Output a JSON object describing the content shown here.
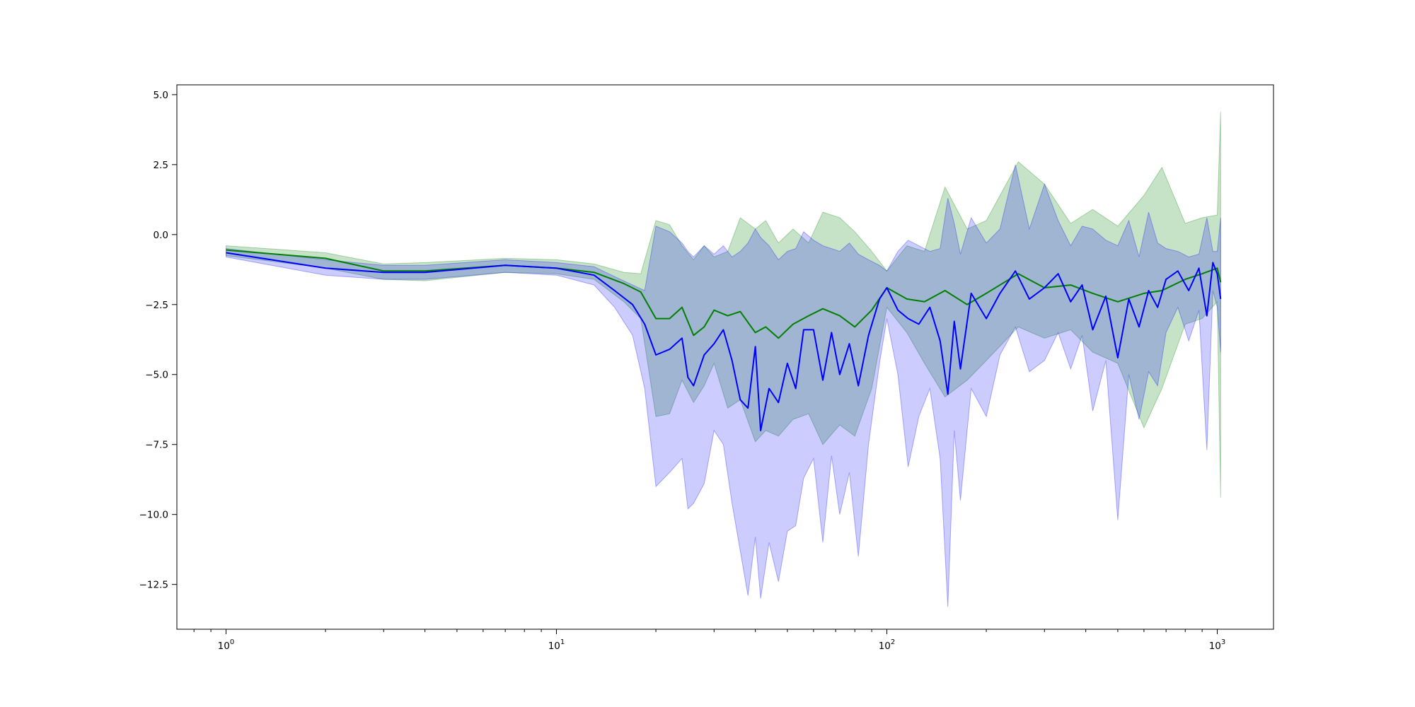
{
  "chart_data": {
    "type": "line",
    "title": "",
    "xlabel": "",
    "ylabel": "",
    "x_scale": "log",
    "xlim": [
      0.71,
      1480
    ],
    "ylim": [
      -14.1,
      5.35
    ],
    "grid": false,
    "legend": "none",
    "x_tick_labels": [
      {
        "base": "10",
        "exp": "0",
        "value": 1
      },
      {
        "base": "10",
        "exp": "1",
        "value": 10
      },
      {
        "base": "10",
        "exp": "2",
        "value": 100
      },
      {
        "base": "10",
        "exp": "3",
        "value": 1000
      }
    ],
    "y_tick_labels": [
      {
        "label": "5.0",
        "value": 5.0
      },
      {
        "label": "2.5",
        "value": 2.5
      },
      {
        "label": "0.0",
        "value": 0.0
      },
      {
        "label": "−2.5",
        "value": -2.5
      },
      {
        "label": "−5.0",
        "value": -5.0
      },
      {
        "label": "−7.5",
        "value": -7.5
      },
      {
        "label": "−10.0",
        "value": -10.0
      },
      {
        "label": "−12.5",
        "value": -12.5
      }
    ],
    "series": [
      {
        "color": "#008000",
        "band_opacity": 0.22,
        "points": [
          {
            "x": 1,
            "y": -0.55,
            "lo": -0.75,
            "hi": -0.4
          },
          {
            "x": 2,
            "y": -0.85,
            "lo": -1.2,
            "hi": -0.65
          },
          {
            "x": 3,
            "y": -1.3,
            "lo": -1.6,
            "hi": -1.05
          },
          {
            "x": 4,
            "y": -1.3,
            "lo": -1.65,
            "hi": -1.0
          },
          {
            "x": 7,
            "y": -1.1,
            "lo": -1.35,
            "hi": -0.85
          },
          {
            "x": 10,
            "y": -1.2,
            "lo": -1.4,
            "hi": -0.9
          },
          {
            "x": 13,
            "y": -1.35,
            "lo": -1.6,
            "hi": -1.05
          },
          {
            "x": 16,
            "y": -1.75,
            "lo": -2.4,
            "hi": -1.35
          },
          {
            "x": 18,
            "y": -2.05,
            "lo": -3.0,
            "hi": -1.4
          },
          {
            "x": 20,
            "y": -3.0,
            "lo": -6.5,
            "hi": 0.5
          },
          {
            "x": 22,
            "y": -3.0,
            "lo": -6.4,
            "hi": 0.35
          },
          {
            "x": 24,
            "y": -2.6,
            "lo": -5.2,
            "hi": -0.4
          },
          {
            "x": 26,
            "y": -3.6,
            "lo": -6.0,
            "hi": -0.9
          },
          {
            "x": 28,
            "y": -3.3,
            "lo": -5.4,
            "hi": -0.4
          },
          {
            "x": 30,
            "y": -2.7,
            "lo": -4.6,
            "hi": -0.8
          },
          {
            "x": 33,
            "y": -2.9,
            "lo": -6.2,
            "hi": -0.6
          },
          {
            "x": 36,
            "y": -2.75,
            "lo": -5.9,
            "hi": 0.6
          },
          {
            "x": 40,
            "y": -3.5,
            "lo": -7.4,
            "hi": 0.2
          },
          {
            "x": 43,
            "y": -3.3,
            "lo": -7.0,
            "hi": 0.5
          },
          {
            "x": 47,
            "y": -3.7,
            "lo": -7.2,
            "hi": -0.3
          },
          {
            "x": 52,
            "y": -3.2,
            "lo": -6.6,
            "hi": 0.2
          },
          {
            "x": 58,
            "y": -2.9,
            "lo": -6.4,
            "hi": -0.3
          },
          {
            "x": 64,
            "y": -2.65,
            "lo": -7.5,
            "hi": 0.8
          },
          {
            "x": 72,
            "y": -2.9,
            "lo": -6.8,
            "hi": 0.6
          },
          {
            "x": 80,
            "y": -3.3,
            "lo": -7.2,
            "hi": 0.1
          },
          {
            "x": 90,
            "y": -2.7,
            "lo": -5.5,
            "hi": -0.6
          },
          {
            "x": 100,
            "y": -1.9,
            "lo": -2.6,
            "hi": -1.3
          },
          {
            "x": 115,
            "y": -2.3,
            "lo": -3.5,
            "hi": -0.4
          },
          {
            "x": 130,
            "y": -2.4,
            "lo": -4.6,
            "hi": -0.6
          },
          {
            "x": 150,
            "y": -2.0,
            "lo": -5.8,
            "hi": 1.7
          },
          {
            "x": 175,
            "y": -2.5,
            "lo": -5.2,
            "hi": 0.2
          },
          {
            "x": 200,
            "y": -2.1,
            "lo": -4.5,
            "hi": 0.5
          },
          {
            "x": 250,
            "y": -1.4,
            "lo": -3.3,
            "hi": 2.6
          },
          {
            "x": 300,
            "y": -1.9,
            "lo": -3.7,
            "hi": 1.8
          },
          {
            "x": 360,
            "y": -1.8,
            "lo": -3.4,
            "hi": 0.4
          },
          {
            "x": 420,
            "y": -2.1,
            "lo": -4.2,
            "hi": 0.9
          },
          {
            "x": 500,
            "y": -2.4,
            "lo": -4.6,
            "hi": 0.3
          },
          {
            "x": 600,
            "y": -2.1,
            "lo": -6.9,
            "hi": 1.4
          },
          {
            "x": 680,
            "y": -2.0,
            "lo": -5.5,
            "hi": 2.4
          },
          {
            "x": 800,
            "y": -1.6,
            "lo": -3.2,
            "hi": 0.4
          },
          {
            "x": 900,
            "y": -1.4,
            "lo": -3.0,
            "hi": 0.6
          },
          {
            "x": 1000,
            "y": -1.2,
            "lo": -2.4,
            "hi": 0.7
          },
          {
            "x": 1024,
            "y": -1.7,
            "lo": -9.4,
            "hi": 4.4
          }
        ]
      },
      {
        "color": "#0000ff",
        "band_opacity": 0.2,
        "points": [
          {
            "x": 1,
            "y": -0.65,
            "lo": -0.8,
            "hi": -0.5
          },
          {
            "x": 2,
            "y": -1.2,
            "lo": -1.45,
            "hi": -0.9
          },
          {
            "x": 3,
            "y": -1.35,
            "lo": -1.6,
            "hi": -1.1
          },
          {
            "x": 4,
            "y": -1.35,
            "lo": -1.6,
            "hi": -1.1
          },
          {
            "x": 7,
            "y": -1.1,
            "lo": -1.35,
            "hi": -0.9
          },
          {
            "x": 10,
            "y": -1.2,
            "lo": -1.45,
            "hi": -1.0
          },
          {
            "x": 13,
            "y": -1.45,
            "lo": -1.8,
            "hi": -1.15
          },
          {
            "x": 15,
            "y": -2.0,
            "lo": -2.6,
            "hi": -1.5
          },
          {
            "x": 17,
            "y": -2.5,
            "lo": -3.6,
            "hi": -1.8
          },
          {
            "x": 18.5,
            "y": -3.2,
            "lo": -5.5,
            "hi": -2.0
          },
          {
            "x": 20,
            "y": -4.3,
            "lo": -9.0,
            "hi": 0.3
          },
          {
            "x": 22,
            "y": -4.1,
            "lo": -8.5,
            "hi": 0.1
          },
          {
            "x": 24,
            "y": -3.7,
            "lo": -8.0,
            "hi": -0.3
          },
          {
            "x": 25,
            "y": -5.1,
            "lo": -9.8,
            "hi": -0.6
          },
          {
            "x": 26,
            "y": -5.4,
            "lo": -9.6,
            "hi": -0.8
          },
          {
            "x": 28,
            "y": -4.3,
            "lo": -8.9,
            "hi": -0.4
          },
          {
            "x": 30,
            "y": -3.9,
            "lo": -7.0,
            "hi": -0.7
          },
          {
            "x": 32,
            "y": -3.4,
            "lo": -7.5,
            "hi": -0.4
          },
          {
            "x": 34,
            "y": -4.5,
            "lo": -9.6,
            "hi": -0.8
          },
          {
            "x": 36,
            "y": -5.9,
            "lo": -11.3,
            "hi": -0.6
          },
          {
            "x": 38,
            "y": -6.2,
            "lo": -12.9,
            "hi": -0.3
          },
          {
            "x": 40,
            "y": -4.0,
            "lo": -10.8,
            "hi": 0.2
          },
          {
            "x": 41.5,
            "y": -7.0,
            "lo": -13.0,
            "hi": -0.1
          },
          {
            "x": 44,
            "y": -5.5,
            "lo": -11.0,
            "hi": -0.4
          },
          {
            "x": 47,
            "y": -6.0,
            "lo": -12.4,
            "hi": -0.9
          },
          {
            "x": 50,
            "y": -4.6,
            "lo": -10.6,
            "hi": -0.6
          },
          {
            "x": 53,
            "y": -5.5,
            "lo": -10.4,
            "hi": -0.5
          },
          {
            "x": 56,
            "y": -3.4,
            "lo": -8.7,
            "hi": 0.1
          },
          {
            "x": 60,
            "y": -3.4,
            "lo": -8.0,
            "hi": -0.2
          },
          {
            "x": 64,
            "y": -5.2,
            "lo": -11.0,
            "hi": -0.4
          },
          {
            "x": 68,
            "y": -3.5,
            "lo": -7.9,
            "hi": -0.5
          },
          {
            "x": 72,
            "y": -5.0,
            "lo": -10.0,
            "hi": -0.6
          },
          {
            "x": 77,
            "y": -3.9,
            "lo": -8.5,
            "hi": -0.3
          },
          {
            "x": 82,
            "y": -5.4,
            "lo": -11.5,
            "hi": -0.7
          },
          {
            "x": 88,
            "y": -3.6,
            "lo": -7.5,
            "hi": -0.9
          },
          {
            "x": 95,
            "y": -2.3,
            "lo": -4.6,
            "hi": -1.1
          },
          {
            "x": 100,
            "y": -1.9,
            "lo": -3.0,
            "hi": -1.3
          },
          {
            "x": 108,
            "y": -2.7,
            "lo": -5.0,
            "hi": -0.6
          },
          {
            "x": 116,
            "y": -3.0,
            "lo": -8.3,
            "hi": -0.2
          },
          {
            "x": 125,
            "y": -3.2,
            "lo": -6.5,
            "hi": -0.4
          },
          {
            "x": 135,
            "y": -2.6,
            "lo": -5.5,
            "hi": -0.6
          },
          {
            "x": 145,
            "y": -3.8,
            "lo": -8.0,
            "hi": -0.5
          },
          {
            "x": 153,
            "y": -5.7,
            "lo": -13.3,
            "hi": 1.3
          },
          {
            "x": 160,
            "y": -3.1,
            "lo": -7.0,
            "hi": 0.4
          },
          {
            "x": 167,
            "y": -4.8,
            "lo": -9.5,
            "hi": -0.7
          },
          {
            "x": 180,
            "y": -2.1,
            "lo": -5.5,
            "hi": 0.6
          },
          {
            "x": 200,
            "y": -3.0,
            "lo": -6.5,
            "hi": -0.3
          },
          {
            "x": 220,
            "y": -2.1,
            "lo": -4.3,
            "hi": 0.2
          },
          {
            "x": 245,
            "y": -1.3,
            "lo": -3.3,
            "hi": 2.5
          },
          {
            "x": 270,
            "y": -2.3,
            "lo": -4.9,
            "hi": 0.2
          },
          {
            "x": 300,
            "y": -1.9,
            "lo": -4.5,
            "hi": 1.8
          },
          {
            "x": 330,
            "y": -1.4,
            "lo": -3.5,
            "hi": 0.5
          },
          {
            "x": 360,
            "y": -2.4,
            "lo": -4.8,
            "hi": -0.4
          },
          {
            "x": 390,
            "y": -1.8,
            "lo": -3.6,
            "hi": 0.3
          },
          {
            "x": 420,
            "y": -3.4,
            "lo": -6.3,
            "hi": 0.2
          },
          {
            "x": 460,
            "y": -2.2,
            "lo": -4.5,
            "hi": -0.2
          },
          {
            "x": 500,
            "y": -4.4,
            "lo": -10.2,
            "hi": -0.4
          },
          {
            "x": 540,
            "y": -2.3,
            "lo": -5.0,
            "hi": 0.5
          },
          {
            "x": 580,
            "y": -3.3,
            "lo": -6.6,
            "hi": -0.8
          },
          {
            "x": 620,
            "y": -2.0,
            "lo": -4.9,
            "hi": 0.8
          },
          {
            "x": 660,
            "y": -2.6,
            "lo": -5.4,
            "hi": -0.3
          },
          {
            "x": 700,
            "y": -1.6,
            "lo": -3.5,
            "hi": -0.5
          },
          {
            "x": 760,
            "y": -1.3,
            "lo": -2.6,
            "hi": -0.6
          },
          {
            "x": 820,
            "y": -2.0,
            "lo": -3.8,
            "hi": -0.8
          },
          {
            "x": 880,
            "y": -1.2,
            "lo": -2.7,
            "hi": -0.7
          },
          {
            "x": 930,
            "y": -2.9,
            "lo": -7.7,
            "hi": 0.6
          },
          {
            "x": 970,
            "y": -1.0,
            "lo": -2.0,
            "hi": -0.6
          },
          {
            "x": 1000,
            "y": -1.4,
            "lo": -2.6,
            "hi": -0.6
          },
          {
            "x": 1024,
            "y": -2.3,
            "lo": -4.2,
            "hi": 0.6
          }
        ]
      }
    ]
  }
}
